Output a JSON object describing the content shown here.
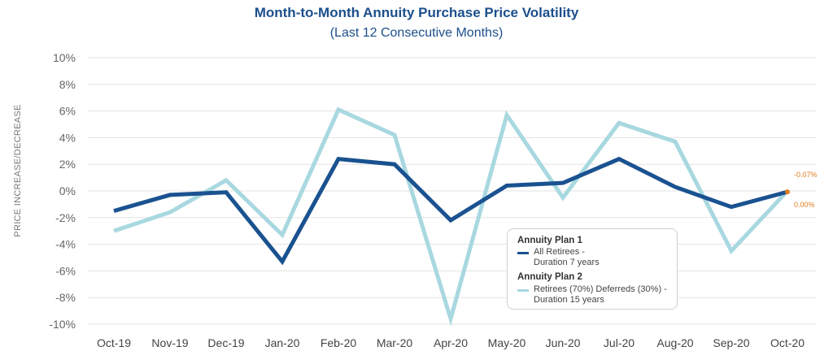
{
  "chart_data": {
    "type": "line",
    "title": "Month-to-Month Annuity Purchase Price Volatility",
    "subtitle": "(Last 12 Consecutive Months)",
    "ylabel": "PRICE INCREASE/DECREASE",
    "xlabel": "",
    "ylim": [
      -10,
      10
    ],
    "yticks": [
      10,
      8,
      6,
      4,
      2,
      0,
      -2,
      -4,
      -6,
      -8,
      -10
    ],
    "ytick_labels": [
      "10%",
      "8%",
      "6%",
      "4%",
      "2%",
      "0%",
      "-2%",
      "-4%",
      "-6%",
      "-8%",
      "-10%"
    ],
    "categories": [
      "Oct-19",
      "Nov-19",
      "Dec-19",
      "Jan-20",
      "Feb-20",
      "Mar-20",
      "Apr-20",
      "May-20",
      "Jun-20",
      "Jul-20",
      "Aug-20",
      "Sep-20",
      "Oct-20"
    ],
    "series": [
      {
        "name": "Annuity Plan 2",
        "description": "Retirees (70%) Deferreds (30%) - Duration 15 years",
        "color": "#a8d8e0",
        "values": [
          -3.0,
          -1.6,
          0.8,
          -3.3,
          6.1,
          4.2,
          -9.6,
          5.7,
          -0.5,
          5.1,
          3.7,
          -4.5,
          0.0
        ]
      },
      {
        "name": "Annuity Plan 1",
        "description": "All Retirees - Duration 7 years",
        "color": "#1a5290",
        "values": [
          -1.5,
          -0.3,
          -0.1,
          -5.3,
          2.4,
          2.0,
          -2.2,
          0.4,
          0.6,
          2.4,
          0.3,
          -1.2,
          -0.07
        ]
      }
    ],
    "data_labels": [
      {
        "series": "Annuity Plan 1",
        "text": "-0.07%"
      },
      {
        "series": "Annuity Plan 2",
        "text": "0.00%"
      }
    ],
    "marker_color": "#e07b1f",
    "grid": true,
    "legend_position": "bottom-right"
  },
  "legend": {
    "plan1_heading": "Annuity Plan 1",
    "plan1_line1": "All Retirees -",
    "plan1_line2": "Duration 7 years",
    "plan2_heading": "Annuity Plan 2",
    "plan2_line1": "Retirees (70%) Deferreds (30%) -",
    "plan2_line2": "Duration 15 years"
  }
}
